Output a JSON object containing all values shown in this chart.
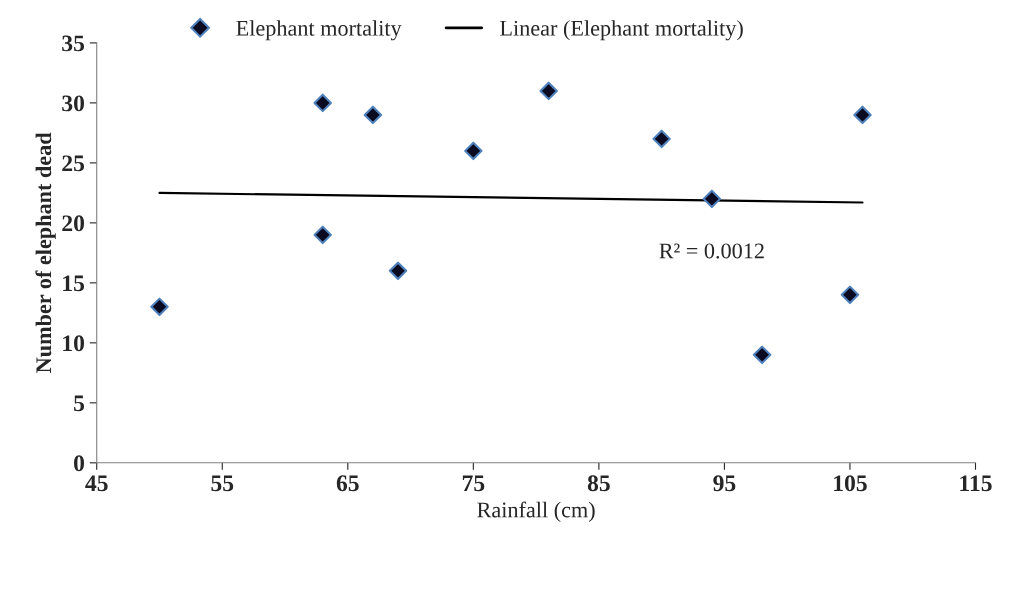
{
  "chart_data": {
    "type": "scatter",
    "xlabel": "Rainfall (cm)",
    "ylabel": "Number of elephant dead",
    "xlim": [
      45,
      115
    ],
    "xticks": [
      45,
      55,
      65,
      75,
      85,
      95,
      105,
      115
    ],
    "ylim": [
      0,
      35
    ],
    "yticks": [
      0,
      5,
      10,
      15,
      20,
      25,
      30,
      35
    ],
    "grid": false,
    "legend": "top",
    "series": [
      {
        "name": "Elephant mortality",
        "marker": "diamond",
        "color": "#0a0a20",
        "x": [
          50,
          63,
          63,
          67,
          69,
          75,
          81,
          90,
          94,
          98,
          105,
          106
        ],
        "values": [
          13,
          30,
          19,
          29,
          16,
          26,
          31,
          27,
          22,
          9,
          14,
          29
        ]
      },
      {
        "name": "Linear (Elephant mortality)",
        "type": "line",
        "marker": "none",
        "line_style": "solid",
        "color": "#000000",
        "x": [
          50,
          106
        ],
        "values": [
          22.5,
          21.7
        ]
      }
    ],
    "annotations": [
      "R² = 0.0012"
    ]
  }
}
